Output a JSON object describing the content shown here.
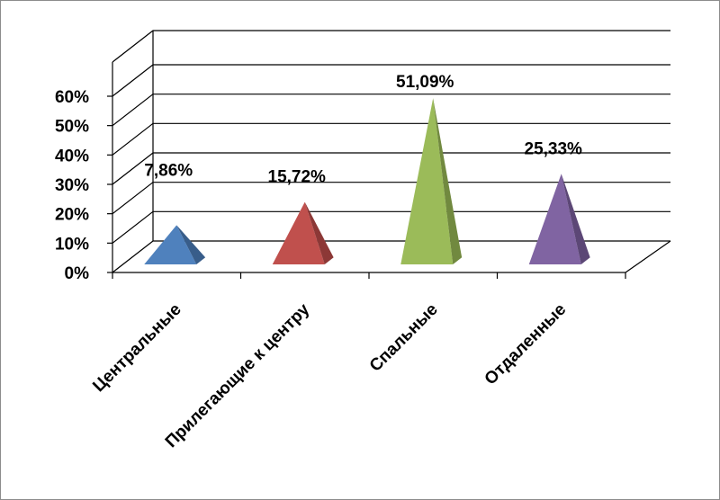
{
  "chart_data": {
    "type": "bar",
    "style": "3d-pyramid",
    "title": "",
    "xlabel": "",
    "ylabel": "",
    "categories": [
      "Центральные",
      "Прилегающие к центру",
      "Спальные",
      "Отдаленные"
    ],
    "values": [
      7.86,
      15.72,
      51.09,
      25.33
    ],
    "value_labels": [
      "7,86%",
      "15,72%",
      "51,09%",
      "25,33%"
    ],
    "ylim": [
      0,
      60
    ],
    "yticks": [
      0,
      10,
      20,
      30,
      40,
      50,
      60
    ],
    "ytick_labels": [
      "0%",
      "10%",
      "20%",
      "30%",
      "40%",
      "50%",
      "60%"
    ],
    "grid": true,
    "legend": "none",
    "colors": [
      {
        "front": "#4f81bd",
        "side": "#385d8a"
      },
      {
        "front": "#c0504d",
        "side": "#8c3836"
      },
      {
        "front": "#9bbb59",
        "side": "#71893f"
      },
      {
        "front": "#8064a2",
        "side": "#5c4776"
      }
    ]
  }
}
